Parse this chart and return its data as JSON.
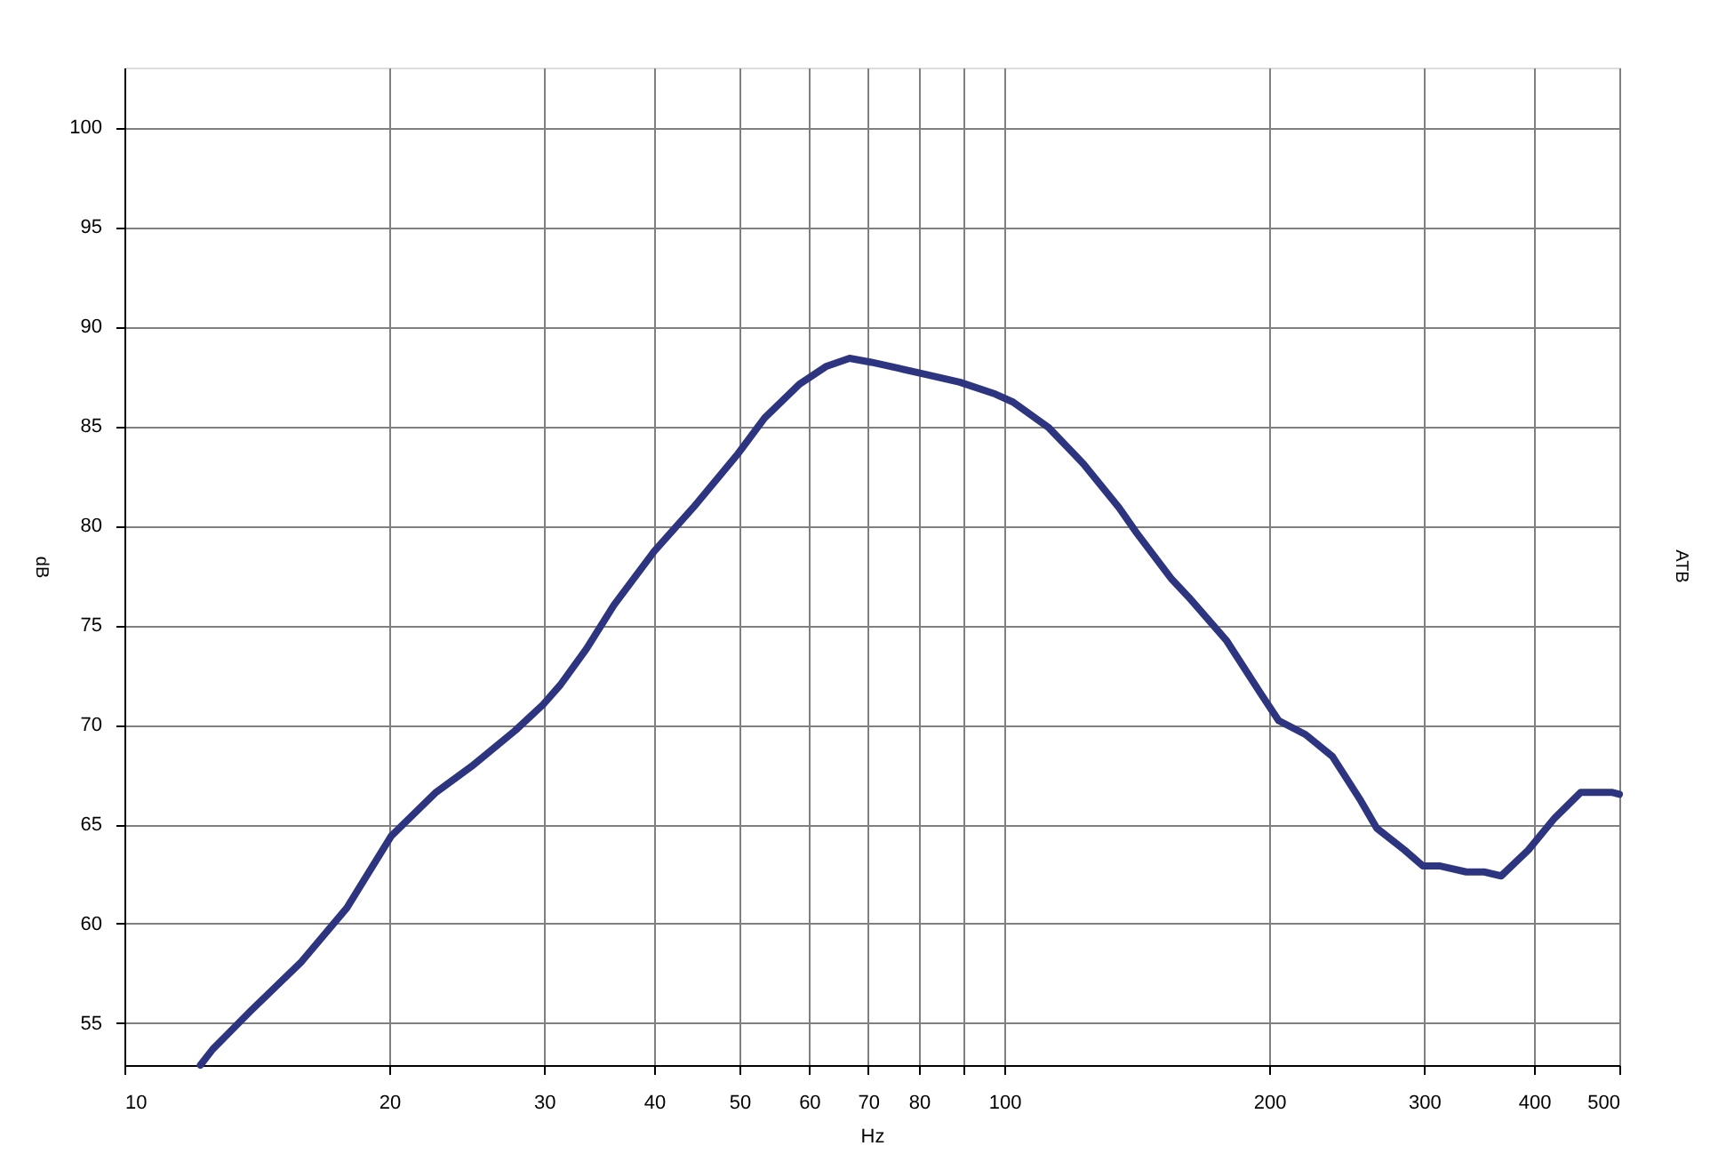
{
  "chart_data": {
    "type": "line",
    "xlabel": "Hz",
    "ylabel": "dB",
    "y2label": "ATB",
    "log": "x",
    "grid": true,
    "marker": "none",
    "line_style": "solid",
    "xlim": [
      10,
      500
    ],
    "ylim": [
      52.9,
      103
    ],
    "xticks": [
      10,
      20,
      30,
      40,
      50,
      60,
      70,
      80,
      {
        "value": 90,
        "label": null
      },
      100,
      200,
      300,
      400,
      500
    ],
    "yticks": [
      55,
      60,
      65,
      70,
      75,
      80,
      85,
      90,
      95,
      100
    ],
    "series": [
      {
        "color": "#2e3580",
        "x": [
          12.2,
          12.6,
          13.9,
          15.9,
          17.9,
          20.1,
          22.6,
          24.8,
          27.8,
          29.9,
          31.3,
          33.5,
          36.0,
          40,
          44.3,
          49.8,
          53.4,
          58.5,
          62.8,
          66.7,
          70.6,
          75.8,
          81.2,
          89,
          97.7,
          102.3,
          112.4,
          123,
          135,
          141,
          155,
          162,
          179,
          196,
          205,
          220,
          236,
          254,
          265,
          285,
          299,
          313,
          335,
          351,
          367,
          394,
          422,
          452,
          490,
          500
        ],
        "values": [
          52.9,
          53.7,
          55.6,
          58.1,
          60.8,
          64.4,
          66.6,
          67.9,
          69.7,
          71.0,
          72.0,
          73.8,
          76.0,
          78.7,
          80.9,
          83.6,
          85.4,
          87.1,
          88.0,
          88.4,
          88.2,
          87.9,
          87.6,
          87.2,
          86.6,
          86.2,
          84.9,
          83.1,
          80.9,
          79.7,
          77.3,
          76.4,
          74.2,
          71.5,
          70.2,
          69.5,
          68.4,
          66.2,
          64.8,
          63.7,
          62.9,
          62.9,
          62.6,
          62.6,
          62.4,
          63.7,
          65.3,
          66.6,
          66.6,
          66.5
        ]
      }
    ]
  }
}
